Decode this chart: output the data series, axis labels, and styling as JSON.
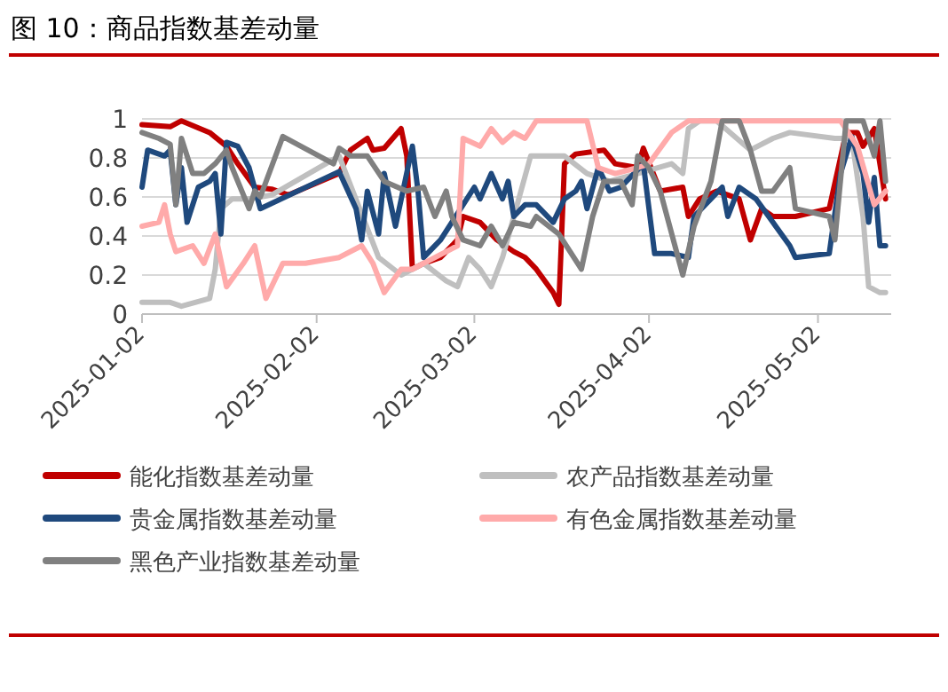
{
  "chart_data": {
    "type": "line",
    "title": "图 10：商品指数基差动量",
    "xlim": [
      "2025-01-02",
      "2025-05-15"
    ],
    "xticks": [
      "2025-01-02",
      "2025-02-02",
      "2025-03-02",
      "2025-04-02",
      "2025-05-02"
    ],
    "ylim": [
      0,
      1
    ],
    "yticks": [
      0,
      {
        "value": 0.2,
        "label": "0.2"
      },
      {
        "value": 0.4,
        "label": "0.4"
      },
      {
        "value": 0.6,
        "label": "0.6"
      },
      {
        "value": 0.8,
        "label": "0.8"
      },
      1
    ],
    "grid": "y",
    "legend": "bottom",
    "line_style": "solid",
    "series": [
      {
        "name": "能化指数基差动量",
        "color": "#c00000",
        "x": [
          "2025-01-02",
          "2025-01-07",
          "2025-01-09",
          "2025-01-14",
          "2025-01-17",
          "2025-01-19",
          "2025-01-22",
          "2025-01-25",
          "2025-01-28",
          "2025-02-06",
          "2025-02-08",
          "2025-02-10",
          "2025-02-11",
          "2025-02-12",
          "2025-02-14",
          "2025-02-17",
          "2025-02-18",
          "2025-02-19",
          "2025-02-21",
          "2025-02-24",
          "2025-02-27",
          "2025-02-28",
          "2025-03-03",
          "2025-03-06",
          "2025-03-09",
          "2025-03-11",
          "2025-03-13",
          "2025-03-16",
          "2025-03-17",
          "2025-03-18",
          "2025-03-20",
          "2025-03-25",
          "2025-03-27",
          "2025-03-31",
          "2025-04-01",
          "2025-04-04",
          "2025-04-08",
          "2025-04-09",
          "2025-04-11",
          "2025-04-14",
          "2025-04-18",
          "2025-04-20",
          "2025-04-22",
          "2025-04-24",
          "2025-04-28",
          "2025-05-04",
          "2025-05-07",
          "2025-05-09",
          "2025-05-10",
          "2025-05-12",
          "2025-05-14"
        ],
        "values": [
          0.97,
          0.96,
          0.99,
          0.93,
          0.86,
          0.77,
          0.65,
          0.64,
          0.61,
          0.72,
          0.84,
          0.88,
          0.9,
          0.84,
          0.85,
          0.95,
          0.81,
          0.23,
          0.26,
          0.29,
          0.38,
          0.5,
          0.47,
          0.38,
          0.32,
          0.29,
          0.23,
          0.11,
          0.05,
          0.77,
          0.82,
          0.84,
          0.77,
          0.75,
          0.85,
          0.63,
          0.65,
          0.5,
          0.59,
          0.63,
          0.59,
          0.38,
          0.54,
          0.5,
          0.5,
          0.54,
          0.93,
          0.93,
          0.86,
          0.95,
          0.59
        ]
      },
      {
        "name": "农产品指数基差动量",
        "color": "#bfbfbf",
        "x": [
          "2025-01-02",
          "2025-01-07",
          "2025-01-09",
          "2025-01-14",
          "2025-01-15",
          "2025-01-16",
          "2025-01-18",
          "2025-01-21",
          "2025-01-25",
          "2025-02-06",
          "2025-02-13",
          "2025-02-17",
          "2025-02-21",
          "2025-02-25",
          "2025-02-27",
          "2025-03-01",
          "2025-03-03",
          "2025-03-05",
          "2025-03-07",
          "2025-03-12",
          "2025-03-18",
          "2025-03-22",
          "2025-03-26",
          "2025-03-31",
          "2025-04-06",
          "2025-04-08",
          "2025-04-09",
          "2025-04-11",
          "2025-04-14",
          "2025-04-20",
          "2025-04-24",
          "2025-04-27",
          "2025-05-05",
          "2025-05-08",
          "2025-05-10",
          "2025-05-11",
          "2025-05-13",
          "2025-05-14"
        ],
        "values": [
          0.06,
          0.06,
          0.04,
          0.08,
          0.23,
          0.54,
          0.59,
          0.59,
          0.61,
          0.81,
          0.29,
          0.2,
          0.26,
          0.17,
          0.14,
          0.29,
          0.23,
          0.14,
          0.29,
          0.81,
          0.81,
          0.72,
          0.68,
          0.72,
          0.77,
          0.72,
          0.95,
          0.99,
          0.99,
          0.84,
          0.9,
          0.93,
          0.9,
          0.9,
          0.5,
          0.14,
          0.11,
          0.11
        ]
      },
      {
        "name": "贵金属指数基差动量",
        "color": "#1f497d",
        "x": [
          "2025-01-02",
          "2025-01-03",
          "2025-01-06",
          "2025-01-07",
          "2025-01-08",
          "2025-01-09",
          "2025-01-10",
          "2025-01-12",
          "2025-01-14",
          "2025-01-15",
          "2025-01-16",
          "2025-01-17",
          "2025-01-19",
          "2025-01-21",
          "2025-01-23",
          "2025-02-06",
          "2025-02-09",
          "2025-02-10",
          "2025-02-11",
          "2025-02-13",
          "2025-02-14",
          "2025-02-16",
          "2025-02-19",
          "2025-02-20",
          "2025-02-21",
          "2025-02-24",
          "2025-02-26",
          "2025-02-28",
          "2025-03-02",
          "2025-03-03",
          "2025-03-05",
          "2025-03-07",
          "2025-03-08",
          "2025-03-09",
          "2025-03-11",
          "2025-03-13",
          "2025-03-16",
          "2025-03-18",
          "2025-03-20",
          "2025-03-21",
          "2025-03-22",
          "2025-03-24",
          "2025-03-26",
          "2025-03-28",
          "2025-04-01",
          "2025-04-03",
          "2025-04-06",
          "2025-04-09",
          "2025-04-10",
          "2025-04-13",
          "2025-04-15",
          "2025-04-16",
          "2025-04-18",
          "2025-04-21",
          "2025-04-24",
          "2025-04-27",
          "2025-04-28",
          "2025-05-04",
          "2025-05-06",
          "2025-05-08",
          "2025-05-10",
          "2025-05-11",
          "2025-05-12",
          "2025-05-13",
          "2025-05-14"
        ],
        "values": [
          0.65,
          0.84,
          0.81,
          0.84,
          0.56,
          0.75,
          0.47,
          0.65,
          0.68,
          0.72,
          0.41,
          0.88,
          0.86,
          0.75,
          0.54,
          0.73,
          0.54,
          0.38,
          0.63,
          0.41,
          0.72,
          0.45,
          0.86,
          0.63,
          0.29,
          0.38,
          0.47,
          0.56,
          0.65,
          0.59,
          0.72,
          0.59,
          0.68,
          0.5,
          0.56,
          0.56,
          0.47,
          0.59,
          0.63,
          0.68,
          0.54,
          0.75,
          0.63,
          0.65,
          0.77,
          0.31,
          0.31,
          0.29,
          0.5,
          0.59,
          0.65,
          0.5,
          0.65,
          0.59,
          0.47,
          0.35,
          0.29,
          0.31,
          0.72,
          0.91,
          0.72,
          0.47,
          0.7,
          0.35,
          0.35
        ]
      },
      {
        "name": "有色金属指数基差动量",
        "color": "#ffaaaa",
        "x": [
          "2025-01-02",
          "2025-01-05",
          "2025-01-06",
          "2025-01-07",
          "2025-01-08",
          "2025-01-11",
          "2025-01-13",
          "2025-01-15",
          "2025-01-17",
          "2025-01-20",
          "2025-01-22",
          "2025-01-24",
          "2025-01-27",
          "2025-01-31",
          "2025-02-06",
          "2025-02-10",
          "2025-02-12",
          "2025-02-14",
          "2025-02-17",
          "2025-02-19",
          "2025-02-27",
          "2025-02-28",
          "2025-03-03",
          "2025-03-05",
          "2025-03-07",
          "2025-03-09",
          "2025-03-11",
          "2025-03-13",
          "2025-03-22",
          "2025-03-24",
          "2025-03-27",
          "2025-03-31",
          "2025-04-02",
          "2025-04-06",
          "2025-04-09",
          "2025-04-20",
          "2025-04-28",
          "2025-05-06",
          "2025-05-09",
          "2025-05-12",
          "2025-05-14"
        ],
        "values": [
          0.45,
          0.47,
          0.56,
          0.41,
          0.32,
          0.35,
          0.26,
          0.41,
          0.14,
          0.26,
          0.35,
          0.08,
          0.26,
          0.26,
          0.29,
          0.35,
          0.26,
          0.11,
          0.23,
          0.23,
          0.35,
          0.9,
          0.86,
          0.95,
          0.88,
          0.93,
          0.9,
          0.99,
          0.99,
          0.75,
          0.72,
          0.75,
          0.77,
          0.93,
          0.99,
          0.99,
          0.99,
          0.99,
          0.86,
          0.56,
          0.63
        ]
      },
      {
        "name": "黑色产业指数基差动量",
        "color": "#808080",
        "x": [
          "2025-01-02",
          "2025-01-05",
          "2025-01-07",
          "2025-01-08",
          "2025-01-09",
          "2025-01-11",
          "2025-01-13",
          "2025-01-15",
          "2025-01-17",
          "2025-01-18",
          "2025-01-21",
          "2025-01-22",
          "2025-01-23",
          "2025-01-27",
          "2025-02-05",
          "2025-02-06",
          "2025-02-08",
          "2025-02-11",
          "2025-02-14",
          "2025-02-18",
          "2025-02-21",
          "2025-02-23",
          "2025-02-25",
          "2025-02-26",
          "2025-02-28",
          "2025-03-03",
          "2025-03-05",
          "2025-03-07",
          "2025-03-09",
          "2025-03-12",
          "2025-03-13",
          "2025-03-17",
          "2025-03-19",
          "2025-03-21",
          "2025-03-23",
          "2025-03-25",
          "2025-03-28",
          "2025-03-30",
          "2025-03-31",
          "2025-04-02",
          "2025-04-04",
          "2025-04-08",
          "2025-04-10",
          "2025-04-13",
          "2025-04-15",
          "2025-04-18",
          "2025-04-20",
          "2025-04-22",
          "2025-04-24",
          "2025-04-27",
          "2025-04-28",
          "2025-05-04",
          "2025-05-05",
          "2025-05-07",
          "2025-05-10",
          "2025-05-12",
          "2025-05-13",
          "2025-05-14"
        ],
        "values": [
          0.93,
          0.9,
          0.87,
          0.56,
          0.9,
          0.72,
          0.72,
          0.77,
          0.84,
          0.75,
          0.54,
          0.63,
          0.6,
          0.91,
          0.77,
          0.85,
          0.81,
          0.81,
          0.68,
          0.63,
          0.65,
          0.5,
          0.63,
          0.5,
          0.38,
          0.35,
          0.45,
          0.35,
          0.47,
          0.45,
          0.5,
          0.41,
          0.32,
          0.23,
          0.5,
          0.68,
          0.68,
          0.56,
          0.81,
          0.75,
          0.63,
          0.2,
          0.45,
          0.68,
          0.99,
          0.99,
          0.84,
          0.63,
          0.63,
          0.75,
          0.54,
          0.5,
          0.38,
          0.99,
          0.99,
          0.81,
          0.99,
          0.68
        ]
      }
    ]
  }
}
